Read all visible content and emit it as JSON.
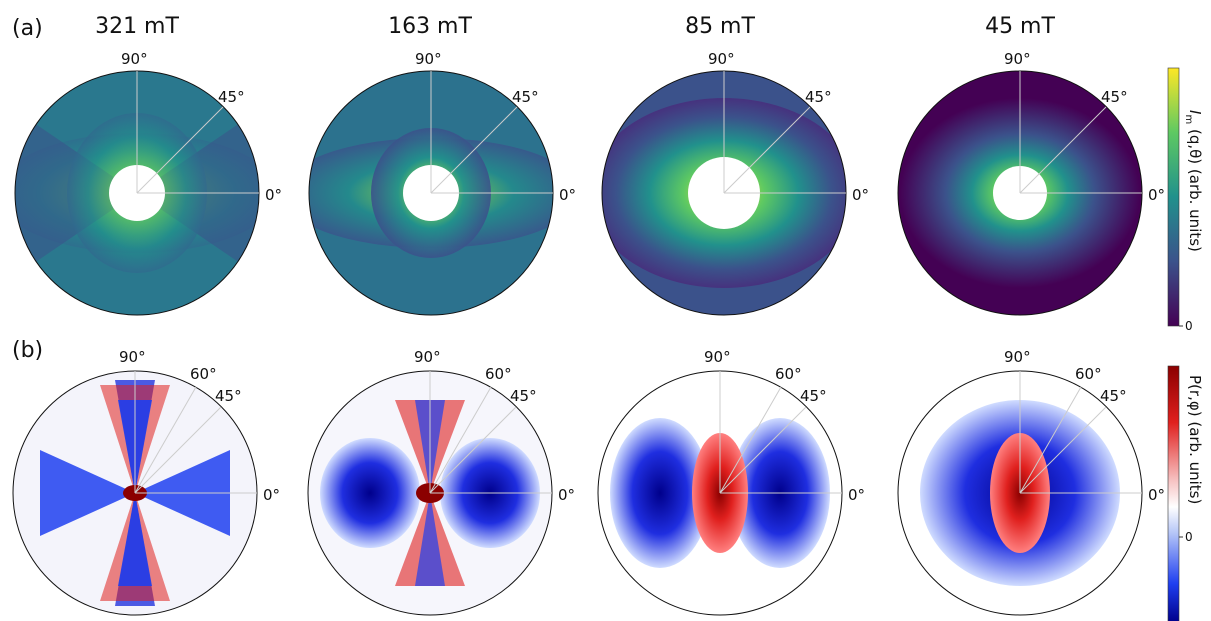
{
  "figure": {
    "panel_a_label": "(a)",
    "panel_b_label": "(b)",
    "fields": [
      "321 mT",
      "163 mT",
      "85 mT",
      "45 mT"
    ],
    "row_a": {
      "angle_labels": [
        "90°",
        "45°",
        "0°"
      ],
      "colorbar": {
        "label_main": "I",
        "label_sub": "m",
        "label_rest": "(q,θ) (arb. units)",
        "tick": "0",
        "colors": [
          "#fde725",
          "#5ec962",
          "#21918c",
          "#3b528b",
          "#440154"
        ]
      },
      "panels": [
        {
          "field": "321 mT",
          "anisotropy": 0.85,
          "noise": 0.9,
          "hole": 0.22
        },
        {
          "field": "163 mT",
          "anisotropy": 0.65,
          "noise": 0.7,
          "hole": 0.25
        },
        {
          "field": "85 mT",
          "anisotropy": 0.35,
          "noise": 0.45,
          "hole": 0.3
        },
        {
          "field": "45 mT",
          "anisotropy": 0.15,
          "noise": 0.25,
          "hole": 0.25
        }
      ]
    },
    "row_b": {
      "angle_labels": [
        "90°",
        "60°",
        "45°",
        "0°"
      ],
      "colorbar": {
        "label": "P(r,φ) (arb. units)",
        "tick": "0",
        "colors": [
          "#b2182b",
          "#f4a582",
          "#f7f7f7",
          "#4393c3",
          "#053061"
        ]
      },
      "panels": [
        {
          "field": "321 mT",
          "shape": "x-cross"
        },
        {
          "field": "163 mT",
          "shape": "x-cross"
        },
        {
          "field": "85 mT",
          "shape": "bowtie"
        },
        {
          "field": "45 mT",
          "shape": "oval"
        }
      ]
    }
  }
}
